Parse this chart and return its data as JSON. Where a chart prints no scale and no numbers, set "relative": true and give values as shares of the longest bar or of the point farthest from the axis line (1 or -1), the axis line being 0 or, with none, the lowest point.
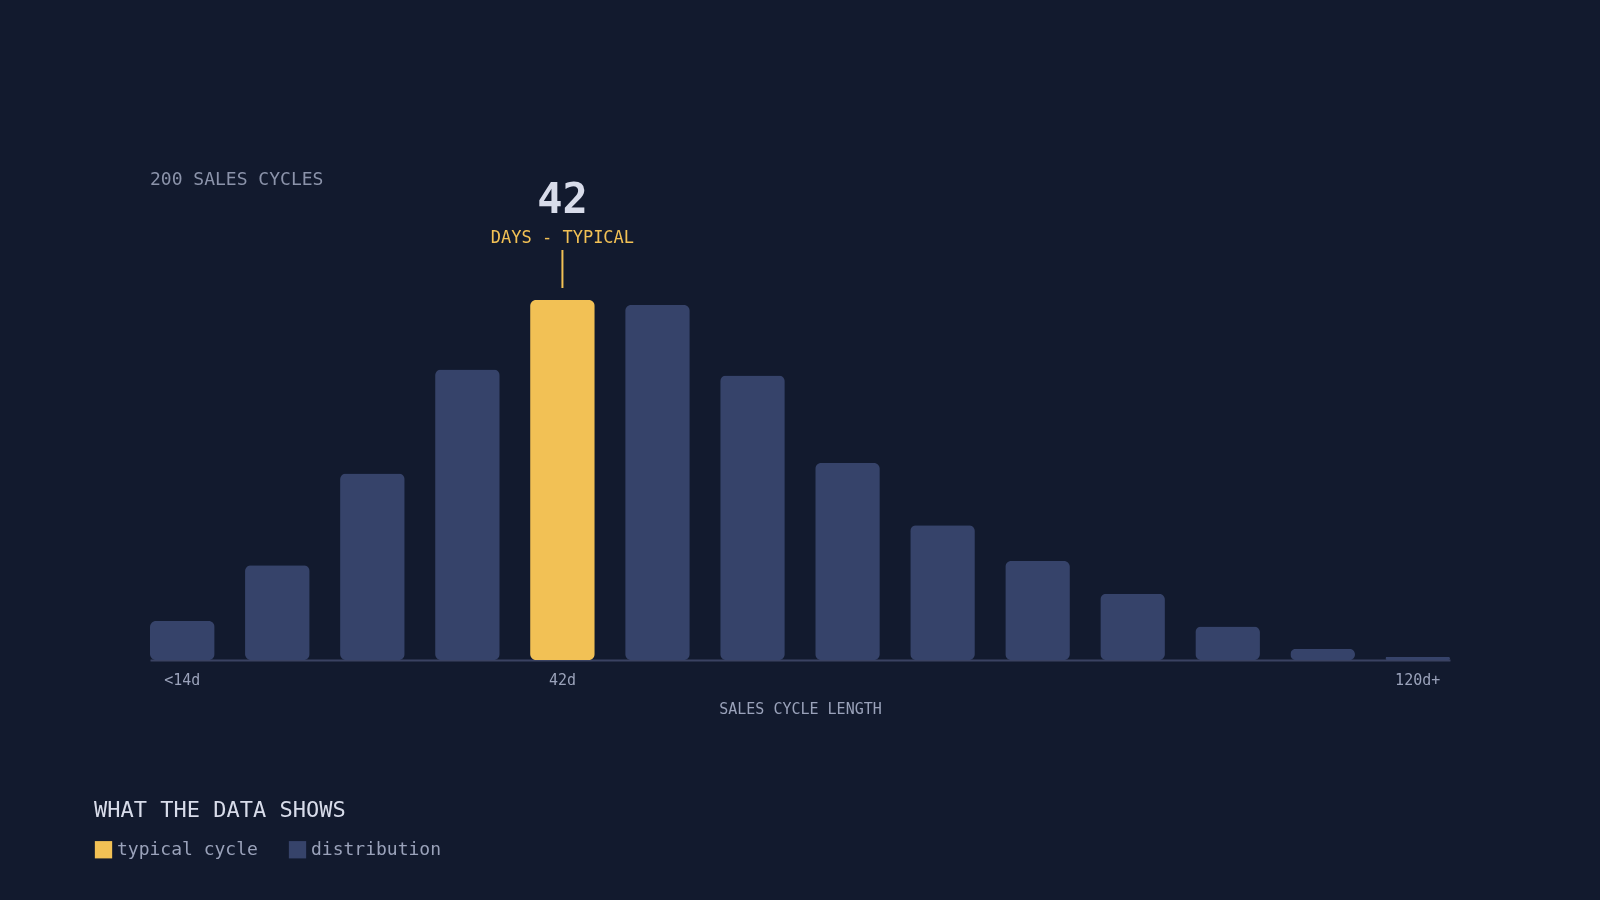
{
  "chart_data": {
    "type": "bar",
    "relative": true,
    "title": "200 SALES CYCLES",
    "xlabel": "SALES CYCLE LENGTH",
    "legend_title": "WHAT THE DATA SHOWS",
    "legend": "bottom left",
    "categories": [
      "<14d",
      null,
      null,
      null,
      "42d",
      null,
      null,
      null,
      null,
      null,
      null,
      null,
      null,
      "120d+"
    ],
    "series": [
      {
        "name": "typical cycle",
        "color": "#f2c155",
        "values": [
          null,
          null,
          null,
          null,
          1,
          null,
          null,
          null,
          null,
          null,
          null,
          null,
          null,
          null
        ]
      },
      {
        "name": "distribution",
        "color": "#36436a",
        "values": [
          0.108,
          0.263,
          0.518,
          0.807,
          null,
          0.986,
          0.79,
          0.547,
          0.374,
          0.275,
          0.184,
          0.093,
          0.031,
          0.008
        ]
      }
    ],
    "annotations": [
      {
        "text": "42",
        "x": "42d",
        "y": 1
      },
      "DAYS - TYPICAL"
    ]
  }
}
